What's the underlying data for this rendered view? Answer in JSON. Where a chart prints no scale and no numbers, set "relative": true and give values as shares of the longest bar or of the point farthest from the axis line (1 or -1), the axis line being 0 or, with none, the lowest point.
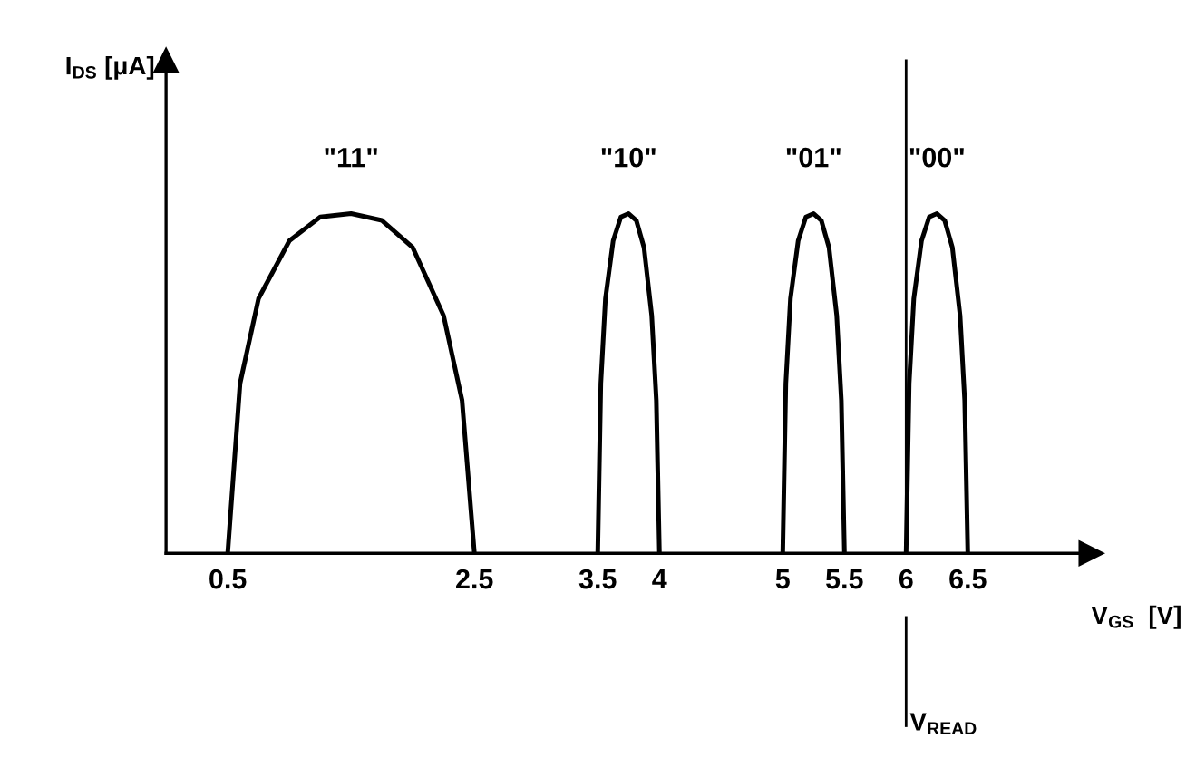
{
  "chart_data": {
    "type": "line",
    "relative": true,
    "xlabel": "V$_{GS}$  [V]",
    "xlim": [
      0,
      7.5
    ],
    "xticks": [
      0.5,
      2.5,
      3.5,
      4,
      5,
      5.5,
      6,
      6.5
    ],
    "series": [
      {
        "color": "#000000",
        "x": [
          0.5,
          0.6,
          0.75,
          1.0,
          1.25,
          1.5,
          1.75,
          2.0,
          2.25,
          2.4,
          2.5
        ],
        "values": [
          0,
          0.5,
          0.75,
          0.92,
          0.99,
          1,
          0.98,
          0.9,
          0.7,
          0.45,
          0
        ]
      },
      {
        "color": "#000000",
        "x": [
          3.5,
          3.525,
          3.5625,
          3.625,
          3.6875,
          3.75,
          3.8125,
          3.875,
          3.9375,
          3.975,
          4.0
        ],
        "values": [
          0,
          0.5,
          0.75,
          0.92,
          0.99,
          1,
          0.98,
          0.9,
          0.7,
          0.45,
          0
        ]
      },
      {
        "color": "#000000",
        "x": [
          5.0,
          5.025,
          5.0625,
          5.125,
          5.1875,
          5.25,
          5.3125,
          5.375,
          5.4375,
          5.475,
          5.5
        ],
        "values": [
          0,
          0.5,
          0.75,
          0.92,
          0.99,
          1,
          0.98,
          0.9,
          0.7,
          0.45,
          0
        ]
      },
      {
        "color": "#000000",
        "x": [
          6.0,
          6.025,
          6.0625,
          6.125,
          6.1875,
          6.25,
          6.3125,
          6.375,
          6.4375,
          6.475,
          6.5
        ],
        "values": [
          0,
          0.5,
          0.75,
          0.92,
          0.99,
          1,
          0.98,
          0.9,
          0.7,
          0.45,
          0
        ]
      }
    ],
    "annotations": [
      {
        "text": "\"11\"",
        "x": 1.5,
        "y": 1
      },
      {
        "text": "\"10\"",
        "x": 3.75,
        "y": 1
      },
      {
        "text": "\"01\"",
        "x": 5.25,
        "y": 1
      },
      {
        "text": "\"00\"",
        "x": 6.25,
        "y": 1
      },
      "I$_{DS}$ [μA]"
    ],
    "ref_lines": [
      {
        "axis": "x",
        "value": 6,
        "label": "V$_{READ}$",
        "color": "#000000"
      }
    ],
    "marker": "none",
    "line_style": "solid",
    "grid": false
  }
}
